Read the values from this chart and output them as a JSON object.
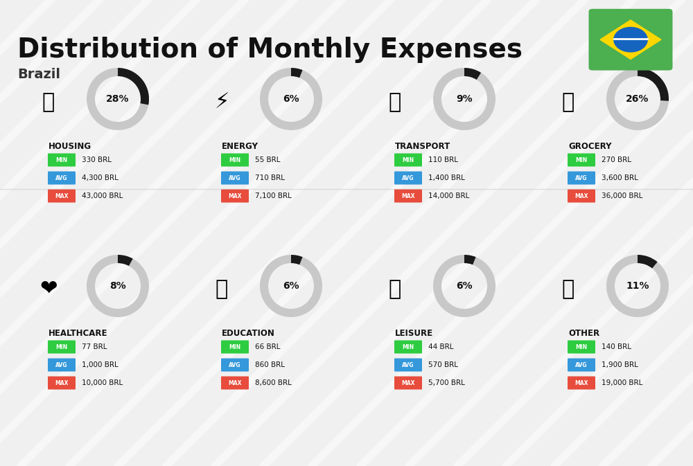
{
  "title": "Distribution of Monthly Expenses",
  "subtitle": "Brazil",
  "background_color": "#f0f0f0",
  "categories": [
    {
      "name": "HOUSING",
      "pct": 28,
      "emoji": "🏗",
      "min_val": "330 BRL",
      "avg_val": "4,300 BRL",
      "max_val": "43,000 BRL",
      "row": 0,
      "col": 0
    },
    {
      "name": "ENERGY",
      "pct": 6,
      "emoji": "⚡",
      "min_val": "55 BRL",
      "avg_val": "710 BRL",
      "max_val": "7,100 BRL",
      "row": 0,
      "col": 1
    },
    {
      "name": "TRANSPORT",
      "pct": 9,
      "emoji": "🚌",
      "min_val": "110 BRL",
      "avg_val": "1,400 BRL",
      "max_val": "14,000 BRL",
      "row": 0,
      "col": 2
    },
    {
      "name": "GROCERY",
      "pct": 26,
      "emoji": "🛒",
      "min_val": "270 BRL",
      "avg_val": "3,600 BRL",
      "max_val": "36,000 BRL",
      "row": 0,
      "col": 3
    },
    {
      "name": "HEALTHCARE",
      "pct": 8,
      "emoji": "❤",
      "min_val": "77 BRL",
      "avg_val": "1,000 BRL",
      "max_val": "10,000 BRL",
      "row": 1,
      "col": 0
    },
    {
      "name": "EDUCATION",
      "pct": 6,
      "emoji": "🎓",
      "min_val": "66 BRL",
      "avg_val": "860 BRL",
      "max_val": "8,600 BRL",
      "row": 1,
      "col": 1
    },
    {
      "name": "LEISURE",
      "pct": 6,
      "emoji": "🛍",
      "min_val": "44 BRL",
      "avg_val": "570 BRL",
      "max_val": "5,700 BRL",
      "row": 1,
      "col": 2
    },
    {
      "name": "OTHER",
      "pct": 11,
      "emoji": "💰",
      "min_val": "140 BRL",
      "avg_val": "1,900 BRL",
      "max_val": "19,000 BRL",
      "row": 1,
      "col": 3
    }
  ],
  "color_min": "#2ecc40",
  "color_avg": "#3498db",
  "color_max": "#e74c3c",
  "color_donut_active": "#1a1a1a",
  "color_donut_bg": "#c8c8c8"
}
